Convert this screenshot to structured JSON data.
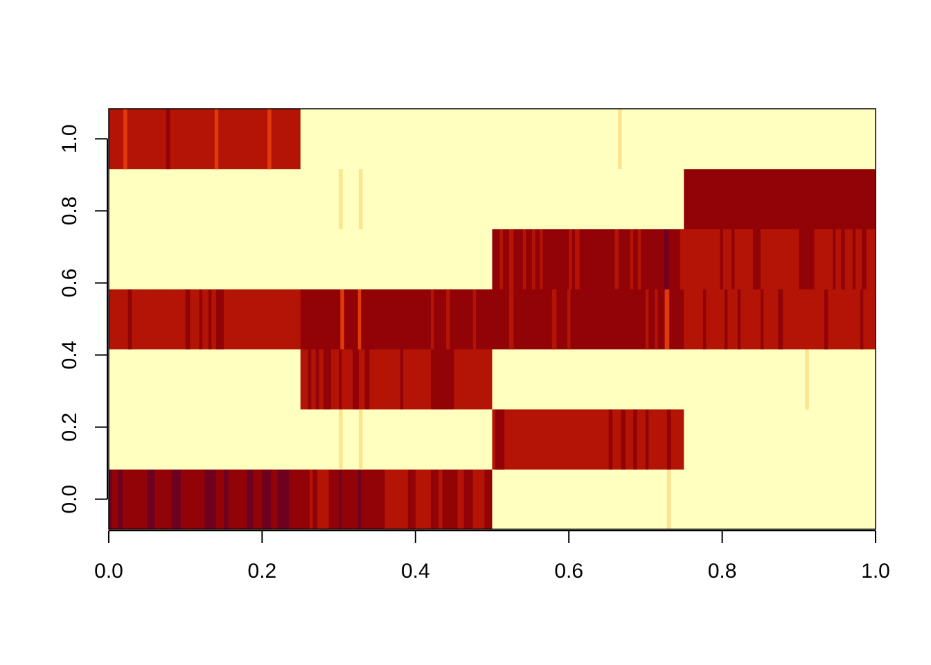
{
  "chart_data": {
    "type": "heatmap",
    "title": "",
    "xlabel": "",
    "ylabel": "",
    "xlim": [
      0.0,
      1.0
    ],
    "ylim": [
      -0.0833,
      1.0833
    ],
    "grid": false,
    "legend": "none",
    "x_ticks": [
      0.0,
      0.2,
      0.4,
      0.6,
      0.8,
      1.0
    ],
    "x_tick_labels": [
      "0.0",
      "0.2",
      "0.4",
      "0.6",
      "0.8",
      "1.0"
    ],
    "y_ticks": [
      0.0,
      0.2,
      0.4,
      0.6,
      0.8,
      1.0
    ],
    "y_tick_labels": [
      "0.0",
      "0.2",
      "0.4",
      "0.6",
      "0.8",
      "1.0"
    ],
    "palette": [
      "#FFFFBF",
      "#FEE391",
      "#FEC44F",
      "#E03A0B",
      "#B31405",
      "#920308",
      "#6E0120"
    ],
    "rows": [
      {
        "y": 0.0,
        "segments": [
          {
            "x0": 0.0,
            "x1": 0.5,
            "color": "#920308"
          },
          {
            "x0": 0.5,
            "x1": 1.0,
            "color": "#FFFFBF"
          }
        ],
        "stripes": [
          {
            "x": 0.0,
            "w": 0.004,
            "color": "#6E0120"
          },
          {
            "x": 0.012,
            "w": 0.006,
            "color": "#6E0120"
          },
          {
            "x": 0.05,
            "w": 0.01,
            "color": "#6E0120"
          },
          {
            "x": 0.082,
            "w": 0.012,
            "color": "#6E0120"
          },
          {
            "x": 0.125,
            "w": 0.015,
            "color": "#6E0120"
          },
          {
            "x": 0.15,
            "w": 0.006,
            "color": "#6E0120"
          },
          {
            "x": 0.18,
            "w": 0.008,
            "color": "#6E0120"
          },
          {
            "x": 0.2,
            "w": 0.012,
            "color": "#6E0120"
          },
          {
            "x": 0.22,
            "w": 0.015,
            "color": "#6E0120"
          },
          {
            "x": 0.262,
            "w": 0.004,
            "color": "#B31405"
          },
          {
            "x": 0.272,
            "w": 0.015,
            "color": "#B31405"
          },
          {
            "x": 0.3,
            "w": 0.004,
            "color": "#6E0120"
          },
          {
            "x": 0.325,
            "w": 0.004,
            "color": "#6E0120"
          },
          {
            "x": 0.36,
            "w": 0.03,
            "color": "#B31405"
          },
          {
            "x": 0.4,
            "w": 0.02,
            "color": "#B31405"
          },
          {
            "x": 0.43,
            "w": 0.005,
            "color": "#B31405"
          },
          {
            "x": 0.455,
            "w": 0.008,
            "color": "#B31405"
          },
          {
            "x": 0.475,
            "w": 0.015,
            "color": "#B31405"
          },
          {
            "x": 0.728,
            "w": 0.005,
            "color": "#FEE391"
          }
        ]
      },
      {
        "y": 0.1667,
        "segments": [
          {
            "x0": 0.0,
            "x1": 0.5,
            "color": "#FFFFBF"
          },
          {
            "x0": 0.5,
            "x1": 0.75,
            "color": "#B31405"
          },
          {
            "x0": 0.75,
            "x1": 1.0,
            "color": "#FFFFBF"
          }
        ],
        "stripes": [
          {
            "x": 0.3,
            "w": 0.005,
            "color": "#FEE391"
          },
          {
            "x": 0.326,
            "w": 0.005,
            "color": "#FEE391"
          },
          {
            "x": 0.504,
            "w": 0.012,
            "color": "#920308"
          },
          {
            "x": 0.652,
            "w": 0.005,
            "color": "#920308"
          },
          {
            "x": 0.668,
            "w": 0.006,
            "color": "#920308"
          },
          {
            "x": 0.684,
            "w": 0.005,
            "color": "#920308"
          },
          {
            "x": 0.7,
            "w": 0.004,
            "color": "#920308"
          },
          {
            "x": 0.728,
            "w": 0.005,
            "color": "#920308"
          }
        ]
      },
      {
        "y": 0.3333,
        "segments": [
          {
            "x0": 0.0,
            "x1": 0.25,
            "color": "#FFFFBF"
          },
          {
            "x0": 0.25,
            "x1": 0.5,
            "color": "#B31405"
          },
          {
            "x0": 0.5,
            "x1": 1.0,
            "color": "#FFFFBF"
          }
        ],
        "stripes": [
          {
            "x": 0.26,
            "w": 0.004,
            "color": "#920308"
          },
          {
            "x": 0.27,
            "w": 0.004,
            "color": "#920308"
          },
          {
            "x": 0.28,
            "w": 0.01,
            "color": "#920308"
          },
          {
            "x": 0.3,
            "w": 0.004,
            "color": "#920308"
          },
          {
            "x": 0.318,
            "w": 0.008,
            "color": "#920308"
          },
          {
            "x": 0.334,
            "w": 0.006,
            "color": "#920308"
          },
          {
            "x": 0.38,
            "w": 0.004,
            "color": "#920308"
          },
          {
            "x": 0.42,
            "w": 0.03,
            "color": "#920308"
          },
          {
            "x": 0.908,
            "w": 0.005,
            "color": "#FEE391"
          }
        ]
      },
      {
        "y": 0.5,
        "segments": [
          {
            "x0": 0.0,
            "x1": 0.25,
            "color": "#B31405"
          },
          {
            "x0": 0.25,
            "x1": 0.75,
            "color": "#920308"
          },
          {
            "x0": 0.75,
            "x1": 1.0,
            "color": "#B31405"
          }
        ],
        "stripes": [
          {
            "x": 0.025,
            "w": 0.005,
            "color": "#920308"
          },
          {
            "x": 0.1,
            "w": 0.006,
            "color": "#920308"
          },
          {
            "x": 0.118,
            "w": 0.004,
            "color": "#920308"
          },
          {
            "x": 0.13,
            "w": 0.004,
            "color": "#920308"
          },
          {
            "x": 0.14,
            "w": 0.01,
            "color": "#920308"
          },
          {
            "x": 0.302,
            "w": 0.005,
            "color": "#E03A0B"
          },
          {
            "x": 0.325,
            "w": 0.004,
            "color": "#E03A0B"
          },
          {
            "x": 0.42,
            "w": 0.004,
            "color": "#B31405"
          },
          {
            "x": 0.44,
            "w": 0.005,
            "color": "#B31405"
          },
          {
            "x": 0.475,
            "w": 0.004,
            "color": "#B31405"
          },
          {
            "x": 0.522,
            "w": 0.006,
            "color": "#B31405"
          },
          {
            "x": 0.578,
            "w": 0.006,
            "color": "#B31405"
          },
          {
            "x": 0.598,
            "w": 0.004,
            "color": "#B31405"
          },
          {
            "x": 0.7,
            "w": 0.004,
            "color": "#B31405"
          },
          {
            "x": 0.712,
            "w": 0.004,
            "color": "#B31405"
          },
          {
            "x": 0.725,
            "w": 0.006,
            "color": "#E03A0B"
          },
          {
            "x": 0.775,
            "w": 0.004,
            "color": "#920308"
          },
          {
            "x": 0.803,
            "w": 0.004,
            "color": "#920308"
          },
          {
            "x": 0.82,
            "w": 0.004,
            "color": "#920308"
          },
          {
            "x": 0.85,
            "w": 0.004,
            "color": "#920308"
          },
          {
            "x": 0.873,
            "w": 0.006,
            "color": "#920308"
          },
          {
            "x": 0.933,
            "w": 0.005,
            "color": "#920308"
          },
          {
            "x": 0.98,
            "w": 0.004,
            "color": "#920308"
          }
        ]
      },
      {
        "y": 0.6667,
        "segments": [
          {
            "x0": 0.0,
            "x1": 0.5,
            "color": "#FFFFBF"
          },
          {
            "x0": 0.5,
            "x1": 0.745,
            "color": "#920308"
          },
          {
            "x0": 0.745,
            "x1": 1.0,
            "color": "#B31405"
          }
        ],
        "stripes": [
          {
            "x": 0.51,
            "w": 0.004,
            "color": "#B31405"
          },
          {
            "x": 0.522,
            "w": 0.006,
            "color": "#B31405"
          },
          {
            "x": 0.54,
            "w": 0.004,
            "color": "#B31405"
          },
          {
            "x": 0.552,
            "w": 0.004,
            "color": "#B31405"
          },
          {
            "x": 0.562,
            "w": 0.004,
            "color": "#B31405"
          },
          {
            "x": 0.6,
            "w": 0.004,
            "color": "#B31405"
          },
          {
            "x": 0.608,
            "w": 0.006,
            "color": "#B31405"
          },
          {
            "x": 0.66,
            "w": 0.005,
            "color": "#B31405"
          },
          {
            "x": 0.68,
            "w": 0.004,
            "color": "#B31405"
          },
          {
            "x": 0.69,
            "w": 0.004,
            "color": "#B31405"
          },
          {
            "x": 0.724,
            "w": 0.006,
            "color": "#6E0120"
          },
          {
            "x": 0.797,
            "w": 0.004,
            "color": "#920308"
          },
          {
            "x": 0.812,
            "w": 0.004,
            "color": "#920308"
          },
          {
            "x": 0.84,
            "w": 0.01,
            "color": "#920308"
          },
          {
            "x": 0.9,
            "w": 0.02,
            "color": "#920308"
          },
          {
            "x": 0.944,
            "w": 0.004,
            "color": "#920308"
          },
          {
            "x": 0.955,
            "w": 0.005,
            "color": "#920308"
          },
          {
            "x": 0.97,
            "w": 0.004,
            "color": "#920308"
          },
          {
            "x": 0.982,
            "w": 0.006,
            "color": "#920308"
          }
        ]
      },
      {
        "y": 0.8333,
        "segments": [
          {
            "x0": 0.0,
            "x1": 0.75,
            "color": "#FFFFBF"
          },
          {
            "x0": 0.75,
            "x1": 1.0,
            "color": "#920308"
          }
        ],
        "stripes": [
          {
            "x": 0.3,
            "w": 0.005,
            "color": "#FEE391"
          },
          {
            "x": 0.326,
            "w": 0.005,
            "color": "#FEE391"
          }
        ]
      },
      {
        "y": 1.0,
        "segments": [
          {
            "x0": 0.0,
            "x1": 0.25,
            "color": "#B31405"
          },
          {
            "x0": 0.25,
            "x1": 1.0,
            "color": "#FFFFBF"
          }
        ],
        "stripes": [
          {
            "x": 0.019,
            "w": 0.005,
            "color": "#E03A0B"
          },
          {
            "x": 0.075,
            "w": 0.005,
            "color": "#920308"
          },
          {
            "x": 0.138,
            "w": 0.005,
            "color": "#E03A0B"
          },
          {
            "x": 0.207,
            "w": 0.005,
            "color": "#E03A0B"
          },
          {
            "x": 0.664,
            "w": 0.005,
            "color": "#FEE391"
          }
        ]
      }
    ]
  }
}
